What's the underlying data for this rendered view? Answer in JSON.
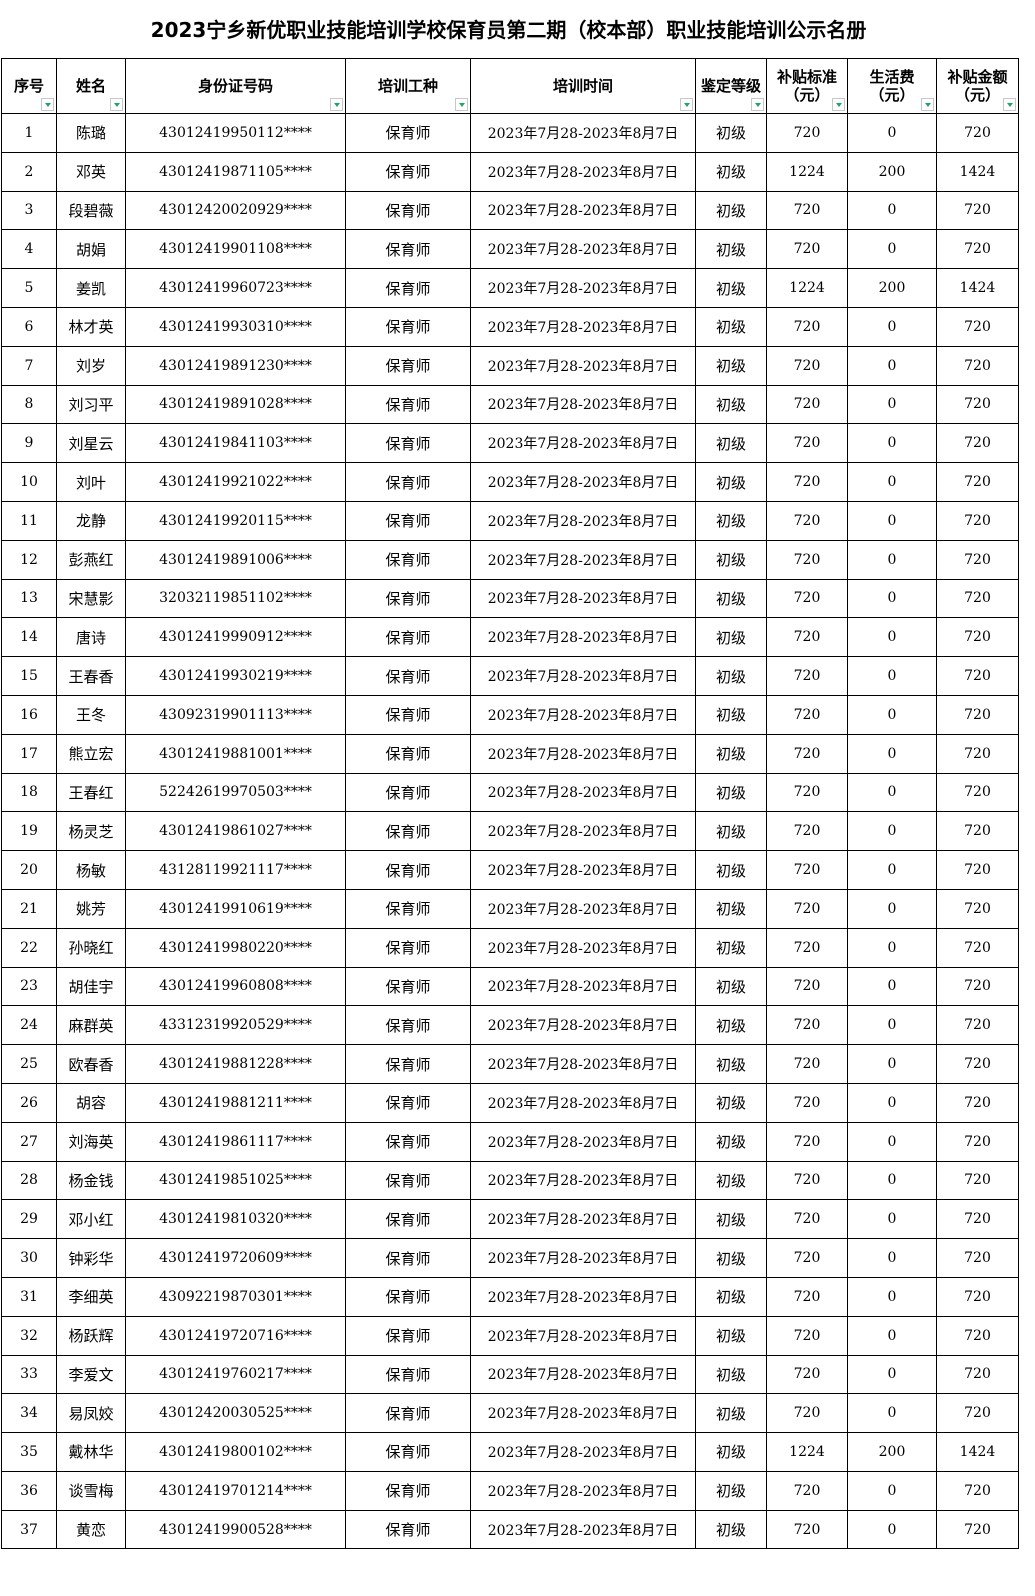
{
  "title": "2023宁乡新优职业技能培训学校保育员第二期（校本部）职业技能培训公示名册",
  "columns": [
    {
      "line1": "序号",
      "line2": ""
    },
    {
      "line1": "姓名",
      "line2": ""
    },
    {
      "line1": "身份证号码",
      "line2": ""
    },
    {
      "line1": "培训工种",
      "line2": ""
    },
    {
      "line1": "培训时间",
      "line2": ""
    },
    {
      "line1": "鉴定等级",
      "line2": ""
    },
    {
      "line1": "补贴标准",
      "line2": "（元）"
    },
    {
      "line1": "生活费",
      "line2": "（元）"
    },
    {
      "line1": "补贴金额",
      "line2": "（元）"
    }
  ],
  "accent_color": "#1fa56a",
  "rows": [
    [
      "1",
      "陈璐",
      "43012419950112****",
      "保育师",
      "2023年7月28-2023年8月7日",
      "初级",
      "720",
      "0",
      "720"
    ],
    [
      "2",
      "邓英",
      "43012419871105****",
      "保育师",
      "2023年7月28-2023年8月7日",
      "初级",
      "1224",
      "200",
      "1424"
    ],
    [
      "3",
      "段碧薇",
      "43012420020929****",
      "保育师",
      "2023年7月28-2023年8月7日",
      "初级",
      "720",
      "0",
      "720"
    ],
    [
      "4",
      "胡娟",
      "43012419901108****",
      "保育师",
      "2023年7月28-2023年8月7日",
      "初级",
      "720",
      "0",
      "720"
    ],
    [
      "5",
      "姜凯",
      "43012419960723****",
      "保育师",
      "2023年7月28-2023年8月7日",
      "初级",
      "1224",
      "200",
      "1424"
    ],
    [
      "6",
      "林才英",
      "43012419930310****",
      "保育师",
      "2023年7月28-2023年8月7日",
      "初级",
      "720",
      "0",
      "720"
    ],
    [
      "7",
      "刘岁",
      "43012419891230****",
      "保育师",
      "2023年7月28-2023年8月7日",
      "初级",
      "720",
      "0",
      "720"
    ],
    [
      "8",
      "刘习平",
      "43012419891028****",
      "保育师",
      "2023年7月28-2023年8月7日",
      "初级",
      "720",
      "0",
      "720"
    ],
    [
      "9",
      "刘星云",
      "43012419841103****",
      "保育师",
      "2023年7月28-2023年8月7日",
      "初级",
      "720",
      "0",
      "720"
    ],
    [
      "10",
      "刘叶",
      "43012419921022****",
      "保育师",
      "2023年7月28-2023年8月7日",
      "初级",
      "720",
      "0",
      "720"
    ],
    [
      "11",
      "龙静",
      "43012419920115****",
      "保育师",
      "2023年7月28-2023年8月7日",
      "初级",
      "720",
      "0",
      "720"
    ],
    [
      "12",
      "彭燕红",
      "43012419891006****",
      "保育师",
      "2023年7月28-2023年8月7日",
      "初级",
      "720",
      "0",
      "720"
    ],
    [
      "13",
      "宋慧影",
      "32032119851102****",
      "保育师",
      "2023年7月28-2023年8月7日",
      "初级",
      "720",
      "0",
      "720"
    ],
    [
      "14",
      "唐诗",
      "43012419990912****",
      "保育师",
      "2023年7月28-2023年8月7日",
      "初级",
      "720",
      "0",
      "720"
    ],
    [
      "15",
      "王春香",
      "43012419930219****",
      "保育师",
      "2023年7月28-2023年8月7日",
      "初级",
      "720",
      "0",
      "720"
    ],
    [
      "16",
      "王冬",
      "43092319901113****",
      "保育师",
      "2023年7月28-2023年8月7日",
      "初级",
      "720",
      "0",
      "720"
    ],
    [
      "17",
      "熊立宏",
      "43012419881001****",
      "保育师",
      "2023年7月28-2023年8月7日",
      "初级",
      "720",
      "0",
      "720"
    ],
    [
      "18",
      "王春红",
      "52242619970503****",
      "保育师",
      "2023年7月28-2023年8月7日",
      "初级",
      "720",
      "0",
      "720"
    ],
    [
      "19",
      "杨灵芝",
      "43012419861027****",
      "保育师",
      "2023年7月28-2023年8月7日",
      "初级",
      "720",
      "0",
      "720"
    ],
    [
      "20",
      "杨敏",
      "43128119921117****",
      "保育师",
      "2023年7月28-2023年8月7日",
      "初级",
      "720",
      "0",
      "720"
    ],
    [
      "21",
      "姚芳",
      "43012419910619****",
      "保育师",
      "2023年7月28-2023年8月7日",
      "初级",
      "720",
      "0",
      "720"
    ],
    [
      "22",
      "孙晓红",
      "43012419980220****",
      "保育师",
      "2023年7月28-2023年8月7日",
      "初级",
      "720",
      "0",
      "720"
    ],
    [
      "23",
      "胡佳宇",
      "43012419960808****",
      "保育师",
      "2023年7月28-2023年8月7日",
      "初级",
      "720",
      "0",
      "720"
    ],
    [
      "24",
      "麻群英",
      "43312319920529****",
      "保育师",
      "2023年7月28-2023年8月7日",
      "初级",
      "720",
      "0",
      "720"
    ],
    [
      "25",
      "欧春香",
      "43012419881228****",
      "保育师",
      "2023年7月28-2023年8月7日",
      "初级",
      "720",
      "0",
      "720"
    ],
    [
      "26",
      "胡容",
      "43012419881211****",
      "保育师",
      "2023年7月28-2023年8月7日",
      "初级",
      "720",
      "0",
      "720"
    ],
    [
      "27",
      "刘海英",
      "43012419861117****",
      "保育师",
      "2023年7月28-2023年8月7日",
      "初级",
      "720",
      "0",
      "720"
    ],
    [
      "28",
      "杨金钱",
      "43012419851025****",
      "保育师",
      "2023年7月28-2023年8月7日",
      "初级",
      "720",
      "0",
      "720"
    ],
    [
      "29",
      "邓小红",
      "43012419810320****",
      "保育师",
      "2023年7月28-2023年8月7日",
      "初级",
      "720",
      "0",
      "720"
    ],
    [
      "30",
      "钟彩华",
      "43012419720609****",
      "保育师",
      "2023年7月28-2023年8月7日",
      "初级",
      "720",
      "0",
      "720"
    ],
    [
      "31",
      "李细英",
      "43092219870301****",
      "保育师",
      "2023年7月28-2023年8月7日",
      "初级",
      "720",
      "0",
      "720"
    ],
    [
      "32",
      "杨跃辉",
      "43012419720716****",
      "保育师",
      "2023年7月28-2023年8月7日",
      "初级",
      "720",
      "0",
      "720"
    ],
    [
      "33",
      "李爱文",
      "43012419760217****",
      "保育师",
      "2023年7月28-2023年8月7日",
      "初级",
      "720",
      "0",
      "720"
    ],
    [
      "34",
      "易凤姣",
      "43012420030525****",
      "保育师",
      "2023年7月28-2023年8月7日",
      "初级",
      "720",
      "0",
      "720"
    ],
    [
      "35",
      "戴林华",
      "43012419800102****",
      "保育师",
      "2023年7月28-2023年8月7日",
      "初级",
      "1224",
      "200",
      "1424"
    ],
    [
      "36",
      "谈雪梅",
      "43012419701214****",
      "保育师",
      "2023年7月28-2023年8月7日",
      "初级",
      "720",
      "0",
      "720"
    ],
    [
      "37",
      "黄恋",
      "43012419900528****",
      "保育师",
      "2023年7月28-2023年8月7日",
      "初级",
      "720",
      "0",
      "720"
    ]
  ]
}
